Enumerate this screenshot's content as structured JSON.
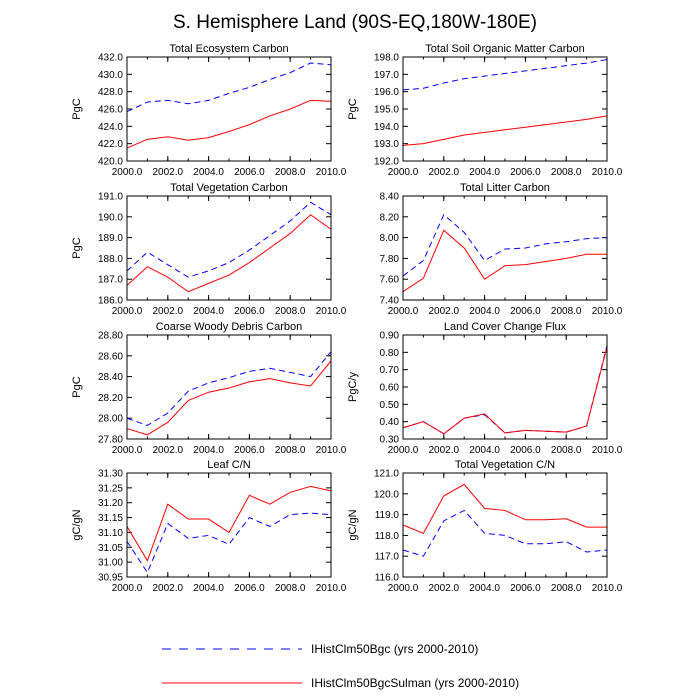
{
  "title": "S. Hemisphere Land (90S-EQ,180W-180E)",
  "legend": [
    {
      "label": "IHistClm50Bgc (yrs 2000-2010)",
      "color": "#0000ff",
      "dash": true
    },
    {
      "label": "IHistClm50BgcSulman (yrs 2000-2010)",
      "color": "#ff0000",
      "dash": false
    }
  ],
  "chart_data": [
    {
      "type": "line",
      "title": "Total Ecosystem Carbon",
      "ylabel": "PgC",
      "x": [
        2000,
        2001,
        2002,
        2003,
        2004,
        2005,
        2006,
        2007,
        2008,
        2009,
        2010
      ],
      "xticks": [
        "2000.0",
        "2002.0",
        "2004.0",
        "2006.0",
        "2008.0",
        "2010.0"
      ],
      "ylim": [
        420,
        432
      ],
      "yticks": [
        "420.0",
        "422.0",
        "424.0",
        "426.0",
        "428.0",
        "430.0",
        "432.0"
      ],
      "series": [
        {
          "name": "IHistClm50Bgc (yrs 2000-2010)",
          "values": [
            425.7,
            426.8,
            427.0,
            426.6,
            427.0,
            427.8,
            428.5,
            429.4,
            430.2,
            431.3,
            431.1
          ]
        },
        {
          "name": "IHistClm50BgcSulman (yrs 2000-2010)",
          "values": [
            421.5,
            422.5,
            422.8,
            422.4,
            422.7,
            423.4,
            424.2,
            425.2,
            426.0,
            427.0,
            426.9
          ]
        }
      ]
    },
    {
      "type": "line",
      "title": "Total Soil Organic Matter Carbon",
      "ylabel": "PgC",
      "x": [
        2000,
        2001,
        2002,
        2003,
        2004,
        2005,
        2006,
        2007,
        2008,
        2009,
        2010
      ],
      "xticks": [
        "2000.0",
        "2002.0",
        "2004.0",
        "2006.0",
        "2008.0",
        "2010.0"
      ],
      "ylim": [
        192,
        198
      ],
      "yticks": [
        "192.0",
        "193.0",
        "194.0",
        "195.0",
        "196.0",
        "197.0",
        "198.0"
      ],
      "series": [
        {
          "name": "IHistClm50Bgc (yrs 2000-2010)",
          "values": [
            196.1,
            196.2,
            196.5,
            196.75,
            196.9,
            197.05,
            197.2,
            197.35,
            197.5,
            197.65,
            197.85
          ]
        },
        {
          "name": "IHistClm50BgcSulman (yrs 2000-2010)",
          "values": [
            192.9,
            193.0,
            193.25,
            193.5,
            193.65,
            193.8,
            193.95,
            194.1,
            194.25,
            194.4,
            194.6
          ]
        }
      ]
    },
    {
      "type": "line",
      "title": "Total Vegetation Carbon",
      "ylabel": "PgC",
      "x": [
        2000,
        2001,
        2002,
        2003,
        2004,
        2005,
        2006,
        2007,
        2008,
        2009,
        2010
      ],
      "xticks": [
        "2000.0",
        "2002.0",
        "2004.0",
        "2006.0",
        "2008.0",
        "2010.0"
      ],
      "ylim": [
        186,
        191
      ],
      "yticks": [
        "186.0",
        "187.0",
        "188.0",
        "189.0",
        "190.0",
        "191.0"
      ],
      "series": [
        {
          "name": "IHistClm50Bgc (yrs 2000-2010)",
          "values": [
            187.4,
            188.3,
            187.7,
            187.1,
            187.4,
            187.8,
            188.4,
            189.1,
            189.8,
            190.7,
            190.1
          ]
        },
        {
          "name": "IHistClm50BgcSulman (yrs 2000-2010)",
          "values": [
            186.7,
            187.6,
            187.1,
            186.4,
            186.8,
            187.2,
            187.8,
            188.5,
            189.2,
            190.1,
            189.4
          ]
        }
      ]
    },
    {
      "type": "line",
      "title": "Total Litter Carbon",
      "ylabel": "",
      "x": [
        2000,
        2001,
        2002,
        2003,
        2004,
        2005,
        2006,
        2007,
        2008,
        2009,
        2010
      ],
      "xticks": [
        "2000.0",
        "2002.0",
        "2004.0",
        "2006.0",
        "2008.0",
        "2010.0"
      ],
      "ylim": [
        7.4,
        8.4
      ],
      "yticks": [
        "7.40",
        "7.60",
        "7.80",
        "8.00",
        "8.20",
        "8.40"
      ],
      "series": [
        {
          "name": "IHistClm50Bgc (yrs 2000-2010)",
          "values": [
            7.63,
            7.78,
            8.22,
            8.05,
            7.78,
            7.89,
            7.9,
            7.94,
            7.96,
            7.99,
            8.0
          ]
        },
        {
          "name": "IHistClm50BgcSulman (yrs 2000-2010)",
          "values": [
            7.48,
            7.61,
            8.07,
            7.9,
            7.6,
            7.73,
            7.74,
            7.77,
            7.8,
            7.84,
            7.84
          ]
        }
      ]
    },
    {
      "type": "line",
      "title": "Coarse Woody Debris Carbon",
      "ylabel": "PgC",
      "x": [
        2000,
        2001,
        2002,
        2003,
        2004,
        2005,
        2006,
        2007,
        2008,
        2009,
        2010
      ],
      "xticks": [
        "2000.0",
        "2002.0",
        "2004.0",
        "2006.0",
        "2008.0",
        "2010.0"
      ],
      "ylim": [
        27.8,
        28.8
      ],
      "yticks": [
        "27.80",
        "28.00",
        "28.20",
        "28.40",
        "28.60",
        "28.80"
      ],
      "series": [
        {
          "name": "IHistClm50Bgc (yrs 2000-2010)",
          "values": [
            28.0,
            27.93,
            28.05,
            28.26,
            28.34,
            28.39,
            28.45,
            28.48,
            28.44,
            28.4,
            28.64
          ]
        },
        {
          "name": "IHistClm50BgcSulman (yrs 2000-2010)",
          "values": [
            27.9,
            27.84,
            27.96,
            28.17,
            28.25,
            28.29,
            28.35,
            28.38,
            28.34,
            28.31,
            28.55
          ]
        }
      ]
    },
    {
      "type": "line",
      "title": "Land Cover Change Flux",
      "ylabel": "PgC/y",
      "x": [
        2000,
        2001,
        2002,
        2003,
        2004,
        2005,
        2006,
        2007,
        2008,
        2009,
        2010
      ],
      "xticks": [
        "2000.0",
        "2002.0",
        "2004.0",
        "2006.0",
        "2008.0",
        "2010.0"
      ],
      "ylim": [
        0.3,
        0.9
      ],
      "yticks": [
        "0.30",
        "0.40",
        "0.50",
        "0.60",
        "0.70",
        "0.80",
        "0.90"
      ],
      "series": [
        {
          "name": "IHistClm50Bgc (yrs 2000-2010)",
          "values": [
            0.365,
            0.4,
            0.33,
            0.42,
            0.44,
            0.335,
            0.35,
            0.345,
            0.34,
            0.375,
            0.84
          ]
        },
        {
          "name": "IHistClm50BgcSulman (yrs 2000-2010)",
          "values": [
            0.365,
            0.4,
            0.33,
            0.42,
            0.445,
            0.335,
            0.35,
            0.345,
            0.34,
            0.375,
            0.83
          ]
        }
      ]
    },
    {
      "type": "line",
      "title": "Leaf C/N",
      "ylabel": "gC/gN",
      "x": [
        2000,
        2001,
        2002,
        2003,
        2004,
        2005,
        2006,
        2007,
        2008,
        2009,
        2010
      ],
      "xticks": [
        "2000.0",
        "2002.0",
        "2004.0",
        "2006.0",
        "2008.0",
        "2010.0"
      ],
      "ylim": [
        30.95,
        31.3
      ],
      "yticks": [
        "30.95",
        "31.00",
        "31.05",
        "31.10",
        "31.15",
        "31.20",
        "31.25",
        "31.30"
      ],
      "series": [
        {
          "name": "IHistClm50Bgc (yrs 2000-2010)",
          "values": [
            31.07,
            30.965,
            31.13,
            31.08,
            31.09,
            31.06,
            31.15,
            31.12,
            31.16,
            31.165,
            31.16
          ]
        },
        {
          "name": "IHistClm50BgcSulman (yrs 2000-2010)",
          "values": [
            31.12,
            31.005,
            31.195,
            31.145,
            31.145,
            31.1,
            31.225,
            31.195,
            31.235,
            31.255,
            31.24
          ]
        }
      ]
    },
    {
      "type": "line",
      "title": "Total Vegetation C/N",
      "ylabel": "gC/gN",
      "x": [
        2000,
        2001,
        2002,
        2003,
        2004,
        2005,
        2006,
        2007,
        2008,
        2009,
        2010
      ],
      "xticks": [
        "2000.0",
        "2002.0",
        "2004.0",
        "2006.0",
        "2008.0",
        "2010.0"
      ],
      "ylim": [
        116,
        121
      ],
      "yticks": [
        "116.0",
        "117.0",
        "118.0",
        "119.0",
        "120.0",
        "121.0"
      ],
      "series": [
        {
          "name": "IHistClm50Bgc (yrs 2000-2010)",
          "values": [
            117.3,
            117.0,
            118.7,
            119.2,
            118.1,
            118.0,
            117.6,
            117.6,
            117.7,
            117.2,
            117.3
          ]
        },
        {
          "name": "IHistClm50BgcSulman (yrs 2000-2010)",
          "values": [
            118.5,
            118.1,
            119.9,
            120.45,
            119.3,
            119.2,
            118.75,
            118.75,
            118.8,
            118.4,
            118.4
          ]
        }
      ]
    }
  ]
}
